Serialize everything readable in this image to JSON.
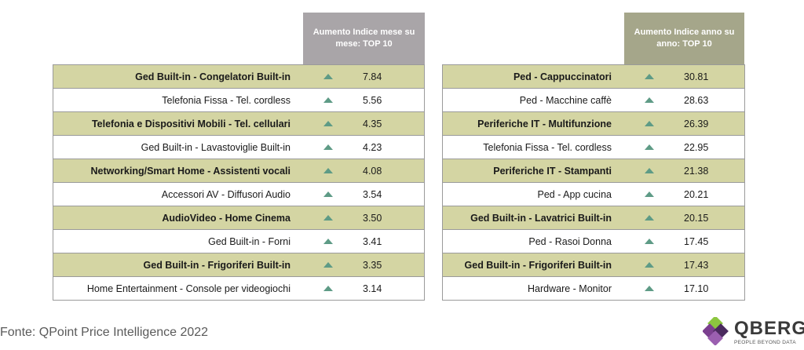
{
  "left_table": {
    "header": "Aumento Indice mese su mese: TOP 10",
    "rows": [
      {
        "label": "Ged Built-in - Congelatori Built-in",
        "value": "7.84",
        "highlight": true
      },
      {
        "label": "Telefonia Fissa - Tel. cordless",
        "value": "5.56",
        "highlight": false
      },
      {
        "label": "Telefonia e Dispositivi Mobili - Tel. cellulari",
        "value": "4.35",
        "highlight": true
      },
      {
        "label": "Ged Built-in - Lavastoviglie Built-in",
        "value": "4.23",
        "highlight": false
      },
      {
        "label": "Networking/Smart Home - Assistenti vocali",
        "value": "4.08",
        "highlight": true
      },
      {
        "label": "Accessori AV - Diffusori Audio",
        "value": "3.54",
        "highlight": false
      },
      {
        "label": "AudioVideo - Home Cinema",
        "value": "3.50",
        "highlight": true
      },
      {
        "label": "Ged Built-in - Forni",
        "value": "3.41",
        "highlight": false
      },
      {
        "label": "Ged Built-in - Frigoriferi Built-in",
        "value": "3.35",
        "highlight": true
      },
      {
        "label": "Home Entertainment - Console per videogiochi",
        "value": "3.14",
        "highlight": false
      }
    ]
  },
  "right_table": {
    "header": "Aumento Indice anno su anno: TOP 10",
    "rows": [
      {
        "label": "Ped - Cappuccinatori",
        "value": "30.81",
        "highlight": true
      },
      {
        "label": "Ped - Macchine caffè",
        "value": "28.63",
        "highlight": false
      },
      {
        "label": "Periferiche IT - Multifunzione",
        "value": "26.39",
        "highlight": true
      },
      {
        "label": "Telefonia Fissa - Tel. cordless",
        "value": "22.95",
        "highlight": false
      },
      {
        "label": "Periferiche IT - Stampanti",
        "value": "21.38",
        "highlight": true
      },
      {
        "label": "Ped - App cucina",
        "value": "20.21",
        "highlight": false
      },
      {
        "label": "Ged Built-in - Lavatrici Built-in",
        "value": "20.15",
        "highlight": true
      },
      {
        "label": "Ped - Rasoi Donna",
        "value": "17.45",
        "highlight": false
      },
      {
        "label": "Ged Built-in - Frigoriferi Built-in",
        "value": "17.43",
        "highlight": true
      },
      {
        "label": "Hardware - Monitor",
        "value": "17.10",
        "highlight": false
      }
    ]
  },
  "source": "Fonte: QPoint Price Intelligence 2022",
  "logo": {
    "name": "QBERG",
    "tagline": "PEOPLE BEYOND DATA"
  },
  "colors": {
    "highlight_row": "#d4d5a3",
    "left_header": "#a9a5a8",
    "right_header": "#a5a68a",
    "arrow": "#5e9b86"
  }
}
